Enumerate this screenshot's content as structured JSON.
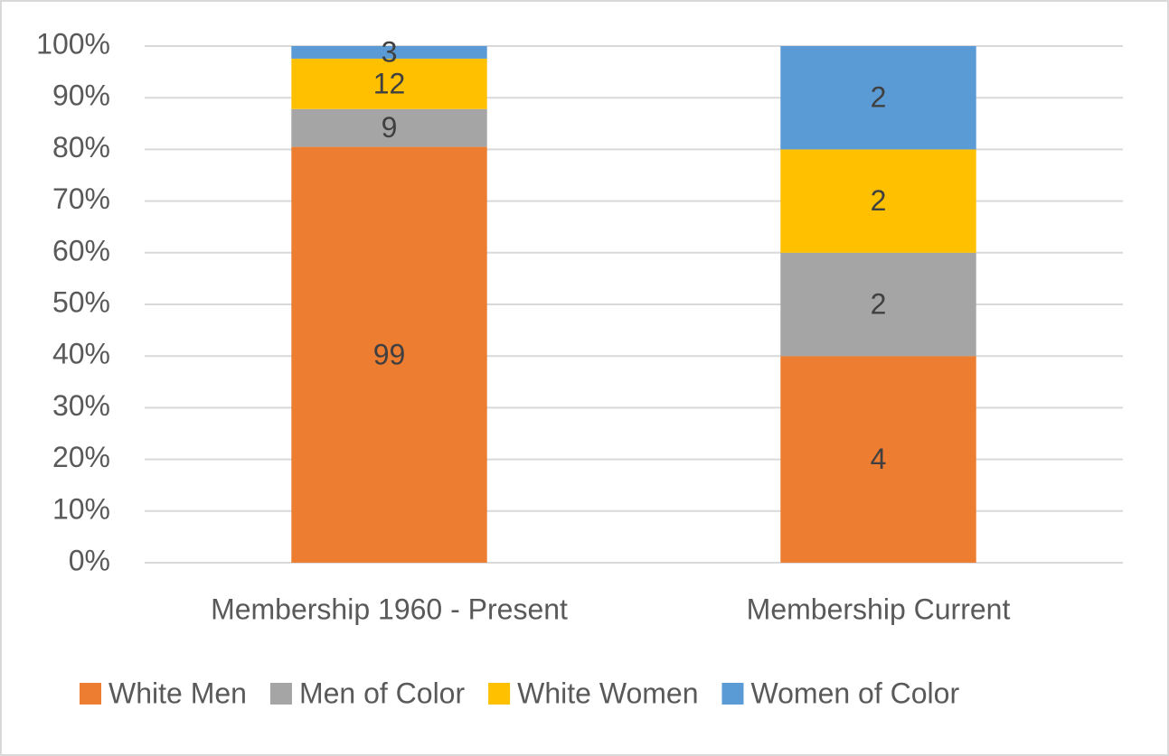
{
  "chart_data": {
    "type": "bar",
    "stacking": "percent",
    "categories": [
      "Membership 1960 - Present",
      "Membership Current"
    ],
    "series": [
      {
        "name": "White Men",
        "color": "#ED7D31",
        "values": [
          99,
          4
        ]
      },
      {
        "name": "Men of Color",
        "color": "#A5A5A5",
        "values": [
          9,
          2
        ]
      },
      {
        "name": "White Women",
        "color": "#FFC000",
        "values": [
          12,
          2
        ]
      },
      {
        "name": "Women of Color",
        "color": "#5B9BD5",
        "values": [
          3,
          2
        ]
      }
    ],
    "ylim": [
      0,
      100
    ],
    "yticks": [
      {
        "value": 0,
        "label": "0%"
      },
      {
        "value": 10,
        "label": "10%"
      },
      {
        "value": 20,
        "label": "20%"
      },
      {
        "value": 30,
        "label": "30%"
      },
      {
        "value": 40,
        "label": "40%"
      },
      {
        "value": 50,
        "label": "50%"
      },
      {
        "value": 60,
        "label": "60%"
      },
      {
        "value": 70,
        "label": "70%"
      },
      {
        "value": 80,
        "label": "80%"
      },
      {
        "value": 90,
        "label": "90%"
      },
      {
        "value": 100,
        "label": "100%"
      }
    ],
    "grid": true,
    "legend": "bottom"
  }
}
